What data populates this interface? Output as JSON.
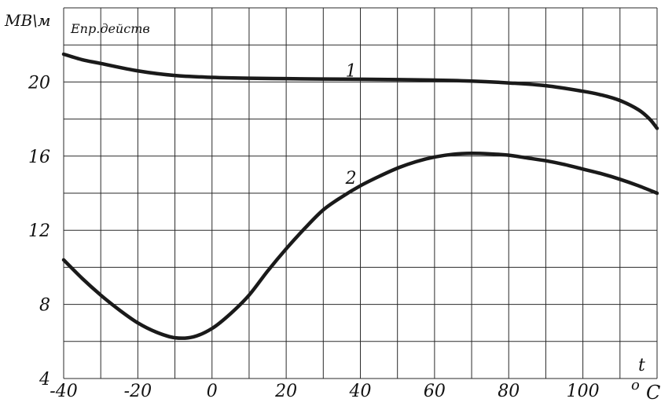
{
  "chart_data": {
    "type": "line",
    "ylabel": "МВ\\м",
    "ylabel_sub": "Eпр.действ",
    "xlabel_top": "t",
    "xlabel_unit_o": "o",
    "xlabel_unit_c": "C",
    "xlim": [
      -40,
      120
    ],
    "ylim": [
      4,
      24
    ],
    "x_ticks": [
      -40,
      -20,
      0,
      20,
      40,
      60,
      80,
      100
    ],
    "y_ticks": [
      4,
      8,
      12,
      16,
      20
    ],
    "x_tick_labels": [
      "-40",
      "-20",
      "0",
      "20",
      "40",
      "60",
      "80",
      "100"
    ],
    "y_tick_labels": [
      "4",
      "8",
      "12",
      "16",
      "20"
    ],
    "grid": true,
    "series": [
      {
        "name": "1",
        "x": [
          -40,
          -35,
          -30,
          -20,
          -10,
          0,
          10,
          20,
          30,
          40,
          50,
          60,
          70,
          80,
          90,
          100,
          105,
          110,
          115,
          118,
          120
        ],
        "y": [
          21.5,
          21.2,
          21.0,
          20.6,
          20.35,
          20.25,
          20.2,
          20.18,
          20.16,
          20.15,
          20.13,
          20.1,
          20.05,
          19.95,
          19.8,
          19.5,
          19.3,
          19.0,
          18.5,
          18.0,
          17.5
        ]
      },
      {
        "name": "2",
        "x": [
          -40,
          -35,
          -30,
          -25,
          -20,
          -15,
          -10,
          -5,
          0,
          5,
          10,
          15,
          20,
          25,
          30,
          35,
          40,
          45,
          50,
          55,
          60,
          65,
          70,
          75,
          80,
          85,
          90,
          95,
          100,
          105,
          110,
          115,
          120
        ],
        "y": [
          10.4,
          9.4,
          8.5,
          7.7,
          7.0,
          6.5,
          6.2,
          6.25,
          6.7,
          7.5,
          8.5,
          9.8,
          11.0,
          12.1,
          13.1,
          13.8,
          14.4,
          14.9,
          15.35,
          15.7,
          15.95,
          16.1,
          16.15,
          16.12,
          16.05,
          15.9,
          15.75,
          15.55,
          15.3,
          15.05,
          14.75,
          14.4,
          14.0
        ]
      }
    ],
    "series_label_positions": [
      {
        "series": "1",
        "x": 36,
        "y": 20.3
      },
      {
        "series": "2",
        "x": 36,
        "y": 14.5
      }
    ]
  }
}
